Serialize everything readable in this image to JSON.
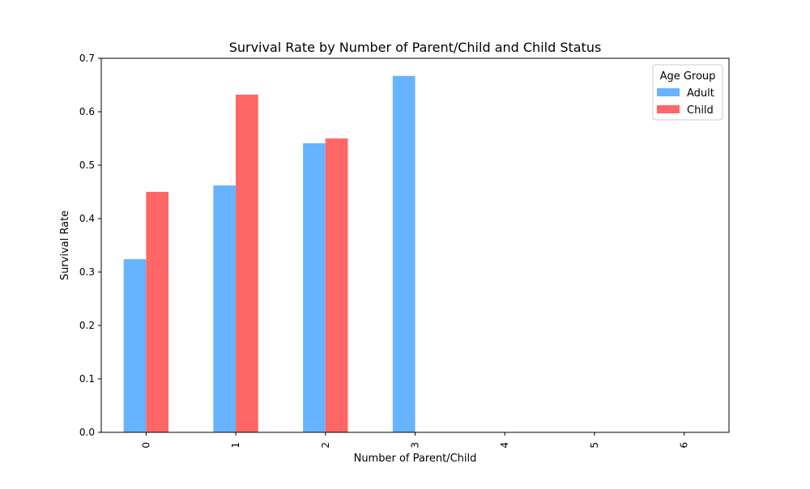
{
  "chart_data": {
    "type": "bar",
    "title": "Survival Rate by Number of Parent/Child and Child Status",
    "xlabel": "Number of Parent/Child",
    "ylabel": "Survival Rate",
    "categories": [
      "0",
      "1",
      "2",
      "3",
      "4",
      "5",
      "6"
    ],
    "series": [
      {
        "name": "Adult",
        "color": "#66b3ff",
        "values": [
          0.324,
          0.462,
          0.541,
          0.667,
          0.0,
          0.0,
          0.0
        ]
      },
      {
        "name": "Child",
        "color": "#ff6666",
        "values": [
          0.45,
          0.632,
          0.55,
          0.0,
          0.0,
          0.0,
          0.0
        ]
      }
    ],
    "ylim": [
      0,
      0.7
    ],
    "yticks": [
      0.0,
      0.1,
      0.2,
      0.3,
      0.4,
      0.5,
      0.6,
      0.7
    ],
    "ytick_labels": [
      "0.0",
      "0.1",
      "0.2",
      "0.3",
      "0.4",
      "0.5",
      "0.6",
      "0.7"
    ],
    "xtick_rotation": "vertical",
    "grid": false,
    "legend": {
      "title": "Age Group",
      "placement": "top-right"
    }
  }
}
